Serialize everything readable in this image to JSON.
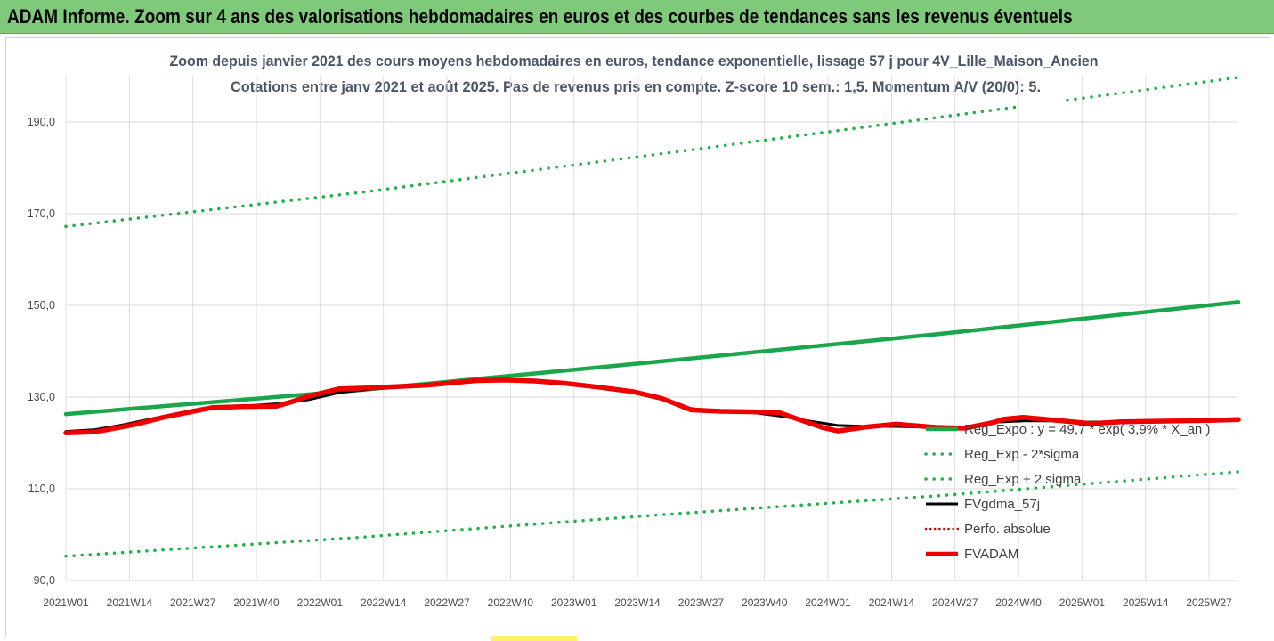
{
  "banner": {
    "title": "ADAM Informe. Zoom sur 4 ans des valorisations hebdomadaires en euros et des courbes de tendances sans les revenus éventuels"
  },
  "colors": {
    "banner_bg": "#7fc97a",
    "trend_green": "#1aa64a",
    "band_green": "#22b04a",
    "fvgdma_black": "#000000",
    "perfo_red_dotted": "#c00000",
    "fvadam_red": "#ee0000",
    "subtitle": "#4a5668"
  },
  "chart_data": {
    "type": "line",
    "title_line1": "Zoom depuis janvier 2021 des cours moyens hebdomadaires en euros, tendance exponentielle, lissage 57 j pour 4V_Lille_Maison_Ancien",
    "title_line2": "Cotations entre janv 2021 et août 2025.  Pas de revenus pris en compte. Z-score 10 sem.: 1,5. Momentum A/V (20/0): 5.",
    "ylim": [
      90,
      200
    ],
    "yticks": [
      90,
      110,
      130,
      150,
      170,
      190
    ],
    "ytick_labels": [
      "90,0",
      "110,0",
      "130,0",
      "150,0",
      "170,0",
      "190,0"
    ],
    "x_index_range": [
      0,
      240
    ],
    "xticks": [
      0,
      13,
      26,
      39,
      52,
      65,
      78,
      91,
      104,
      117,
      130,
      143,
      156,
      169,
      182,
      195,
      208,
      221,
      234
    ],
    "xtick_labels": [
      "2021W01",
      "2021W14",
      "2021W27",
      "2021W40",
      "2022W01",
      "2022W14",
      "2022W27",
      "2022W40",
      "2023W01",
      "2023W14",
      "2023W27",
      "2023W40",
      "2024W01",
      "2024W14",
      "2024W27",
      "2024W40",
      "2025W01",
      "2025W14",
      "2025W27"
    ],
    "grid": "vertical",
    "legend_placement": "bottom-right",
    "series": [
      {
        "name": "Reg_Expo : y = 49,7 * exp( 3,9% * X_an )",
        "style": "solid-thick",
        "x": [
          0,
          60,
          120,
          180,
          240
        ],
        "values": [
          126.3,
          131.5,
          137.6,
          143.9,
          150.7
        ]
      },
      {
        "name": "Reg_Exp - 2*sigma",
        "style": "dotted",
        "x": [
          0,
          60,
          120,
          180,
          240
        ],
        "values": [
          95.3,
          99.4,
          104.2,
          108.6,
          113.7
        ]
      },
      {
        "name": "Reg_Exp + 2 sigma",
        "style": "dotted",
        "x": [
          0,
          60,
          120,
          180,
          240
        ],
        "values": [
          167.2,
          174.6,
          182.8,
          191.2,
          199.7
        ],
        "gap_x": [
          195,
          205
        ]
      },
      {
        "name": "FVgdma_57j",
        "style": "solid",
        "x": [
          0,
          6,
          12,
          20,
          30,
          36,
          44,
          50,
          56,
          62,
          70,
          78,
          84,
          90,
          96,
          104,
          110,
          116,
          122,
          128,
          134,
          140,
          146,
          152,
          158,
          164,
          170,
          178,
          184,
          190,
          196,
          202,
          208,
          214,
          220,
          226,
          232,
          240
        ],
        "values": [
          122.5,
          122.9,
          124,
          125.8,
          127.5,
          128,
          128.6,
          129.5,
          131,
          131.7,
          132.3,
          133,
          133.8,
          133.8,
          133.5,
          132.8,
          132,
          131,
          129.5,
          127.5,
          126.8,
          126.7,
          125.9,
          124.8,
          123.8,
          123.6,
          123.6,
          123.4,
          123.4,
          124.5,
          124.8,
          124.8,
          124.5,
          124.6,
          124.6,
          124.7,
          124.9,
          125
        ]
      },
      {
        "name": "Perfo. absolue",
        "style": "dotted",
        "x": [],
        "values": []
      },
      {
        "name": "FVADAM",
        "style": "solid-thick",
        "x": [
          0,
          6,
          10,
          14,
          20,
          26,
          30,
          36,
          43,
          46,
          50,
          56,
          62,
          70,
          74,
          80,
          84,
          90,
          96,
          102,
          108,
          116,
          122,
          128,
          134,
          140,
          146,
          152,
          155,
          158,
          164,
          170,
          178,
          184,
          190,
          192,
          196,
          202,
          210,
          216,
          222,
          228,
          234,
          240
        ],
        "values": [
          122.2,
          122.4,
          123.2,
          124,
          125.6,
          126.9,
          127.7,
          127.9,
          128,
          128.9,
          130.3,
          131.8,
          132,
          132.4,
          132.6,
          133.2,
          133.6,
          133.7,
          133.5,
          133,
          132.3,
          131.2,
          129.7,
          127.2,
          126.9,
          126.8,
          126.6,
          124.4,
          123.3,
          122.6,
          123.5,
          124.1,
          123.4,
          123.2,
          124.5,
          125.2,
          125.6,
          125,
          124.2,
          124.6,
          124.7,
          124.8,
          124.9,
          125.1
        ]
      }
    ]
  }
}
